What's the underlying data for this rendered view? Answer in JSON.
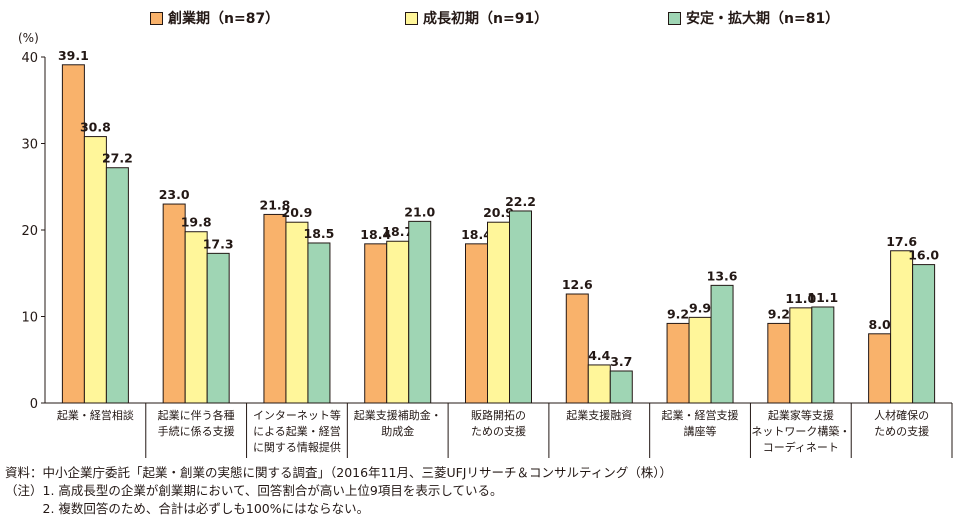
{
  "chart_data": {
    "type": "bar",
    "unit": "(%)",
    "categories": [
      [
        "起業・経営相談"
      ],
      [
        "起業に伴う各種",
        "手続に係る支援"
      ],
      [
        "インターネット等",
        "による起業・経営",
        "に関する情報提供"
      ],
      [
        "起業支援補助金・",
        "助成金"
      ],
      [
        "販路開拓の",
        "ための支援"
      ],
      [
        "起業支援融資"
      ],
      [
        "起業・経営支援",
        "講座等"
      ],
      [
        "起業家等支援",
        "ネットワーク構築・",
        "コーディネート"
      ],
      [
        "人材確保の",
        "ための支援"
      ]
    ],
    "series": [
      {
        "name": "創業期（n=87）",
        "color": "#F9B26B",
        "values": [
          39.1,
          23.0,
          21.8,
          18.4,
          18.4,
          12.6,
          9.2,
          9.2,
          8.0
        ]
      },
      {
        "name": "成長初期（n=91）",
        "color": "#FFF69A",
        "values": [
          30.8,
          19.8,
          20.9,
          18.7,
          20.9,
          4.4,
          9.9,
          11.0,
          17.6
        ]
      },
      {
        "name": "安定・拡大期（n=81）",
        "color": "#9FD5B4",
        "values": [
          27.2,
          17.3,
          18.5,
          21.0,
          22.2,
          3.7,
          13.6,
          11.1,
          16.0
        ]
      }
    ],
    "ylim": [
      0,
      40
    ],
    "yticks": [
      0,
      10,
      20,
      30,
      40
    ],
    "legend_position": "top",
    "grid": false
  },
  "notes": [
    "資料：中小企業庁委託「起業・創業の実態に関する調査」（2016年11月、三菱UFJリサーチ＆コンサルティング（株））",
    "（注）1. 高成長型の企業が創業期において、回答割合が高い上位9項目を表示している。",
    "　　　2. 複数回答のため、合計は必ずしも100%にはならない。"
  ]
}
